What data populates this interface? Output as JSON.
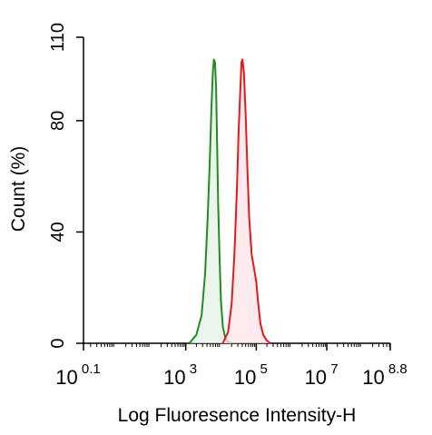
{
  "chart_data": {
    "type": "line",
    "title": "",
    "xlabel": "Log Fluoresence Intensity-H",
    "ylabel": "Count  (%)",
    "x_scale": "log10",
    "xlim_log10": [
      0.1,
      8.8
    ],
    "ylim": [
      0,
      110
    ],
    "x_ticks": [
      {
        "log10": 0.1,
        "base": "10",
        "exp": "0.1"
      },
      {
        "log10": 3,
        "base": "10",
        "exp": "3"
      },
      {
        "log10": 5,
        "base": "10",
        "exp": "5"
      },
      {
        "log10": 7,
        "base": "10",
        "exp": "7"
      },
      {
        "log10": 8.8,
        "base": "10",
        "exp": "8.8"
      }
    ],
    "y_ticks": [
      {
        "value": 0,
        "label": "0"
      },
      {
        "value": 40,
        "label": "40"
      },
      {
        "value": 80,
        "label": "80"
      },
      {
        "value": 110,
        "label": "110"
      }
    ],
    "grid": false,
    "legend": "none",
    "series": [
      {
        "color": "#228B22",
        "fill": "#e6f2e6",
        "x_log10": [
          3.1,
          3.3,
          3.45,
          3.55,
          3.62,
          3.68,
          3.73,
          3.77,
          3.8,
          3.83,
          3.86,
          3.89,
          3.92,
          3.96,
          4.0,
          4.05,
          4.12,
          4.2,
          4.3
        ],
        "y": [
          0,
          3,
          10,
          25,
          45,
          65,
          85,
          98,
          102,
          101,
          92,
          72,
          50,
          30,
          15,
          6,
          2,
          0.5,
          0
        ]
      },
      {
        "color": "#e31a1c",
        "fill": "#fbe3e6",
        "x_log10": [
          4.05,
          4.2,
          4.3,
          4.38,
          4.45,
          4.5,
          4.55,
          4.58,
          4.61,
          4.65,
          4.7,
          4.75,
          4.8,
          4.87,
          4.95,
          5.0,
          5.05,
          5.12,
          5.2,
          5.3,
          5.4
        ],
        "y": [
          0,
          4,
          14,
          32,
          55,
          76,
          92,
          101,
          102,
          97,
          82,
          62,
          45,
          32,
          26,
          22,
          15,
          7,
          3,
          1,
          0
        ]
      }
    ]
  }
}
